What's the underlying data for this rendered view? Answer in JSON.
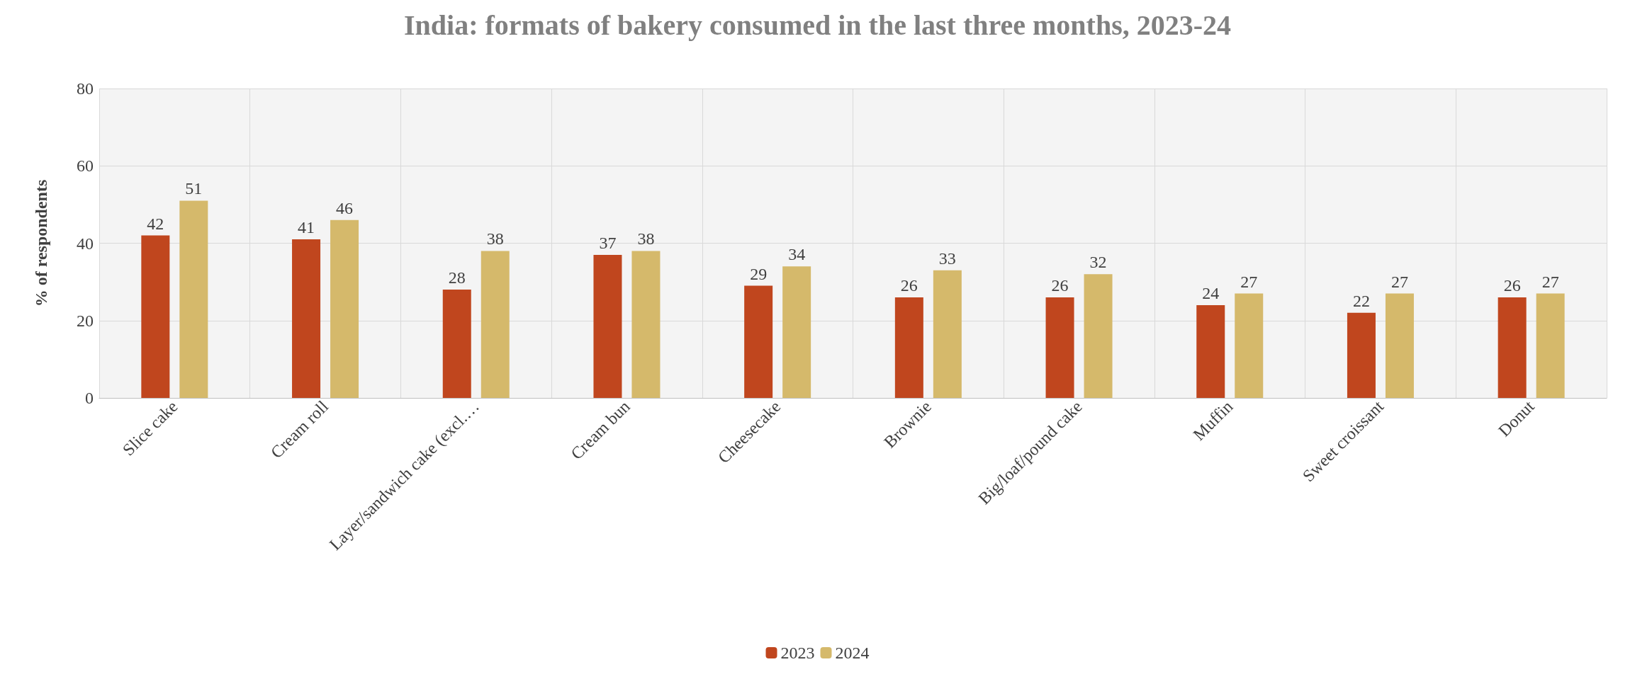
{
  "chart_data": {
    "type": "bar",
    "title": "India: formats of bakery consumed in the last three months, 2023-24",
    "ylabel": "% of respondents",
    "categories": [
      "Slice cake",
      "Cream roll",
      "Layer/sandwich cake (excl.…",
      "Cream bun",
      "Cheesecake",
      "Brownie",
      "Big/loaf/pound cake",
      "Muffin",
      "Sweet croissant",
      "Donut"
    ],
    "series": [
      {
        "name": "2023",
        "color": "#c0461e",
        "values": [
          42,
          41,
          28,
          37,
          29,
          26,
          26,
          24,
          22,
          26
        ]
      },
      {
        "name": "2024",
        "color": "#d5b96b",
        "values": [
          51,
          46,
          38,
          38,
          34,
          33,
          32,
          27,
          27,
          27
        ]
      }
    ],
    "ylim": [
      0,
      80
    ],
    "yticks": [
      0,
      20,
      40,
      60,
      80
    ],
    "grid": true,
    "legend": "bottom",
    "data_labels": true
  }
}
